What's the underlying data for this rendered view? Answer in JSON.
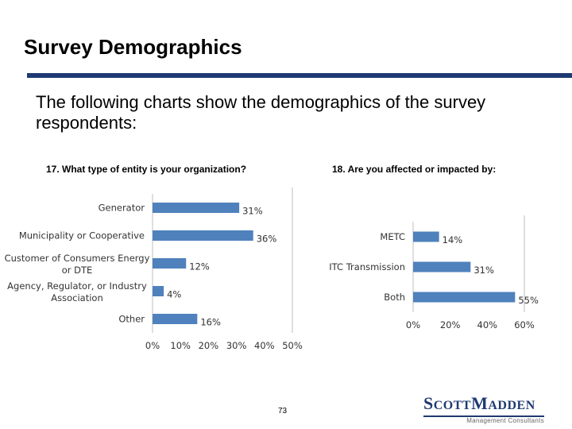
{
  "slide": {
    "title": "Survey Demographics",
    "intro": "The following charts show the demographics of the survey respondents:",
    "page_number": "73"
  },
  "logo": {
    "text": "ScottMadden",
    "subtitle": "Management Consultants",
    "color": "#1f3a73"
  },
  "colors": {
    "bar": "#4f81bd",
    "axis": "#bfbfbf",
    "rule": "#1f3a73"
  },
  "chart_data": [
    {
      "type": "bar",
      "orientation": "horizontal",
      "title": "17.  What type of entity is your organization?",
      "categories": [
        [
          "Generator"
        ],
        [
          "Municipality or Cooperative"
        ],
        [
          "Customer of Consumers Energy",
          "or DTE"
        ],
        [
          "Agency, Regulator, or Industry",
          "Association"
        ],
        [
          "Other"
        ]
      ],
      "values": [
        31,
        36,
        12,
        4,
        16
      ],
      "value_labels": [
        "31%",
        "36%",
        "12%",
        "4%",
        "16%"
      ],
      "ticks": [
        "0%",
        "10%",
        "20%",
        "30%",
        "40%",
        "50%"
      ],
      "xlim": [
        0,
        50
      ],
      "grid": false
    },
    {
      "type": "bar",
      "orientation": "horizontal",
      "title": "18.  Are you affected or impacted by:",
      "categories": [
        [
          "METC"
        ],
        [
          "ITC Transmission"
        ],
        [
          "Both"
        ]
      ],
      "values": [
        14,
        31,
        55
      ],
      "value_labels": [
        "14%",
        "31%",
        "55%"
      ],
      "ticks": [
        "0%",
        "20%",
        "40%",
        "60%"
      ],
      "xlim": [
        0,
        60
      ],
      "grid": false
    }
  ]
}
